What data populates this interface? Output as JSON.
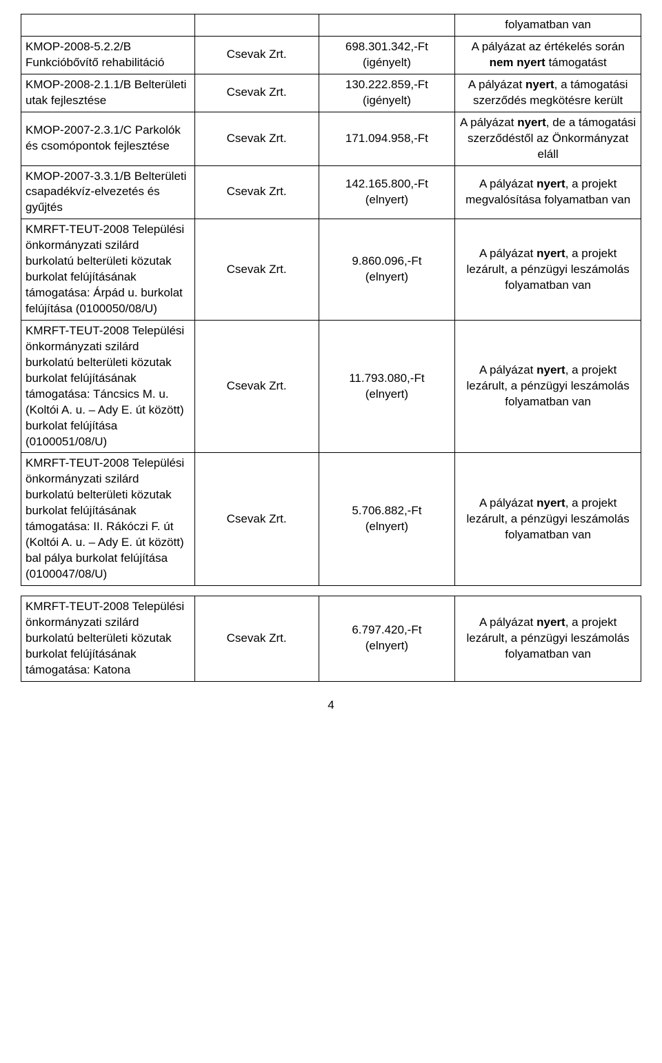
{
  "common": {
    "applicant": "Csevak Zrt.",
    "elnyert": "(elnyert)",
    "igenyelt": "(igényelt)"
  },
  "top_row": {
    "c4": "folyamatban van"
  },
  "rows": [
    {
      "c1": "KMOP-2008-5.2.2/B Funkcióbővítő rehabilitáció",
      "c3_amount": "698.301.342,-Ft",
      "c3_note": "(igényelt)",
      "c4_pre": "A pályázat az értékelés során ",
      "c4_bold": "nem nyert",
      "c4_post": " támogatást"
    },
    {
      "c1": "KMOP-2008-2.1.1/B Belterületi utak fejlesztése",
      "c3_amount": "130.222.859,-Ft",
      "c3_note": "(igényelt)",
      "c4_pre": "A pályázat ",
      "c4_bold": "nyert",
      "c4_post": ", a támogatási szerződés megkötésre került"
    },
    {
      "c1": "KMOP-2007-2.3.1/C Parkolók és csomópontok fejlesztése",
      "c3_amount": "171.094.958,-Ft",
      "c3_note": "",
      "c4_pre": "A pályázat ",
      "c4_bold": "nyert",
      "c4_post": ", de a támogatási szerződéstől az Önkormányzat eláll"
    },
    {
      "c1": "KMOP-2007-3.3.1/B Belterületi csapadékvíz-elvezetés és gyűjtés",
      "c3_amount": "142.165.800,-Ft",
      "c3_note": "(elnyert)",
      "c4_pre": "A pályázat ",
      "c4_bold": "nyert",
      "c4_post": ", a projekt megvalósítása folyamatban van"
    },
    {
      "c1": "KMRFT-TEUT-2008 Települési önkormányzati szilárd burkolatú belterületi közutak burkolat felújításának támogatása: Árpád u. burkolat felújítása (0100050/08/U)",
      "c3_amount": "9.860.096,-Ft",
      "c3_note": "(elnyert)",
      "c4_pre": "A pályázat ",
      "c4_bold": "nyert",
      "c4_post": ", a projekt lezárult, a pénzügyi leszámolás folyamatban van"
    },
    {
      "c1": "KMRFT-TEUT-2008 Települési önkormányzati szilárd burkolatú belterületi közutak burkolat felújításának támogatása: Táncsics M. u. (Koltói A. u. – Ady E. út között) burkolat felújítása (0100051/08/U)",
      "c3_amount": "11.793.080,-Ft",
      "c3_note": "(elnyert)",
      "c4_pre": "A pályázat ",
      "c4_bold": "nyert",
      "c4_post": ", a projekt lezárult, a pénzügyi leszámolás folyamatban van"
    },
    {
      "c1": "KMRFT-TEUT-2008 Települési önkormányzati szilárd burkolatú belterületi közutak burkolat felújításának támogatása: II. Rákóczi F. út (Koltói A. u. – Ady E. út között) bal pálya burkolat felújítása (0100047/08/U)",
      "c3_amount": "5.706.882,-Ft",
      "c3_note": "(elnyert)",
      "c4_pre": "A pályázat ",
      "c4_bold": "nyert",
      "c4_post": ", a projekt lezárult, a pénzügyi leszámolás folyamatban van"
    }
  ],
  "table2_row": {
    "c1": "KMRFT-TEUT-2008 Települési önkormányzati szilárd burkolatú belterületi közutak burkolat felújításának támogatása: Katona",
    "c3_amount": "6.797.420,-Ft",
    "c3_note": "(elnyert)",
    "c4_pre": "A pályázat ",
    "c4_bold": "nyert",
    "c4_post": ", a projekt lezárult, a pénzügyi leszámolás folyamatban van"
  },
  "page_number": "4",
  "style": {
    "font_family": "Arial",
    "font_size_pt": 12,
    "border_color": "#000000",
    "background_color": "#ffffff",
    "text_color": "#000000",
    "col_widths_pct": [
      28,
      20,
      22,
      30
    ]
  }
}
